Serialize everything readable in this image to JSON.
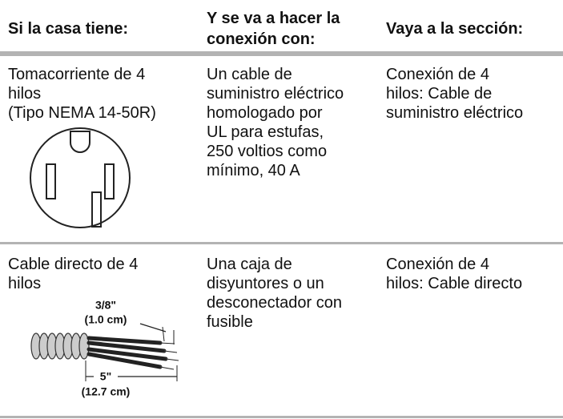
{
  "table": {
    "header": [
      [
        "Si la casa tiene:"
      ],
      [
        "Y se va a hacer la",
        "conexión con:"
      ],
      [
        "Vaya a la sección:"
      ]
    ],
    "rows": [
      {
        "cells": [
          [
            "Tomacorriente de 4",
            "hilos",
            "(Tipo NEMA 14-50R)"
          ],
          [
            "Un cable de",
            "suministro eléctrico",
            "homologado por",
            "UL para estufas,",
            "250 voltios como",
            "mínimo, 40 A"
          ],
          [
            "Conexión de 4",
            "hilos: Cable de",
            "suministro eléctrico"
          ]
        ]
      },
      {
        "cells": [
          [
            "Cable directo de 4",
            "hilos"
          ],
          [
            "Una caja de",
            "disyuntores o un",
            "desconectador con",
            "fusible"
          ],
          [
            "Conexión de 4",
            "hilos: Cable directo"
          ]
        ],
        "figure_labels": [
          "3/8\"",
          "(1.0 cm)",
          "5\"",
          "(12.7 cm)"
        ]
      }
    ]
  }
}
